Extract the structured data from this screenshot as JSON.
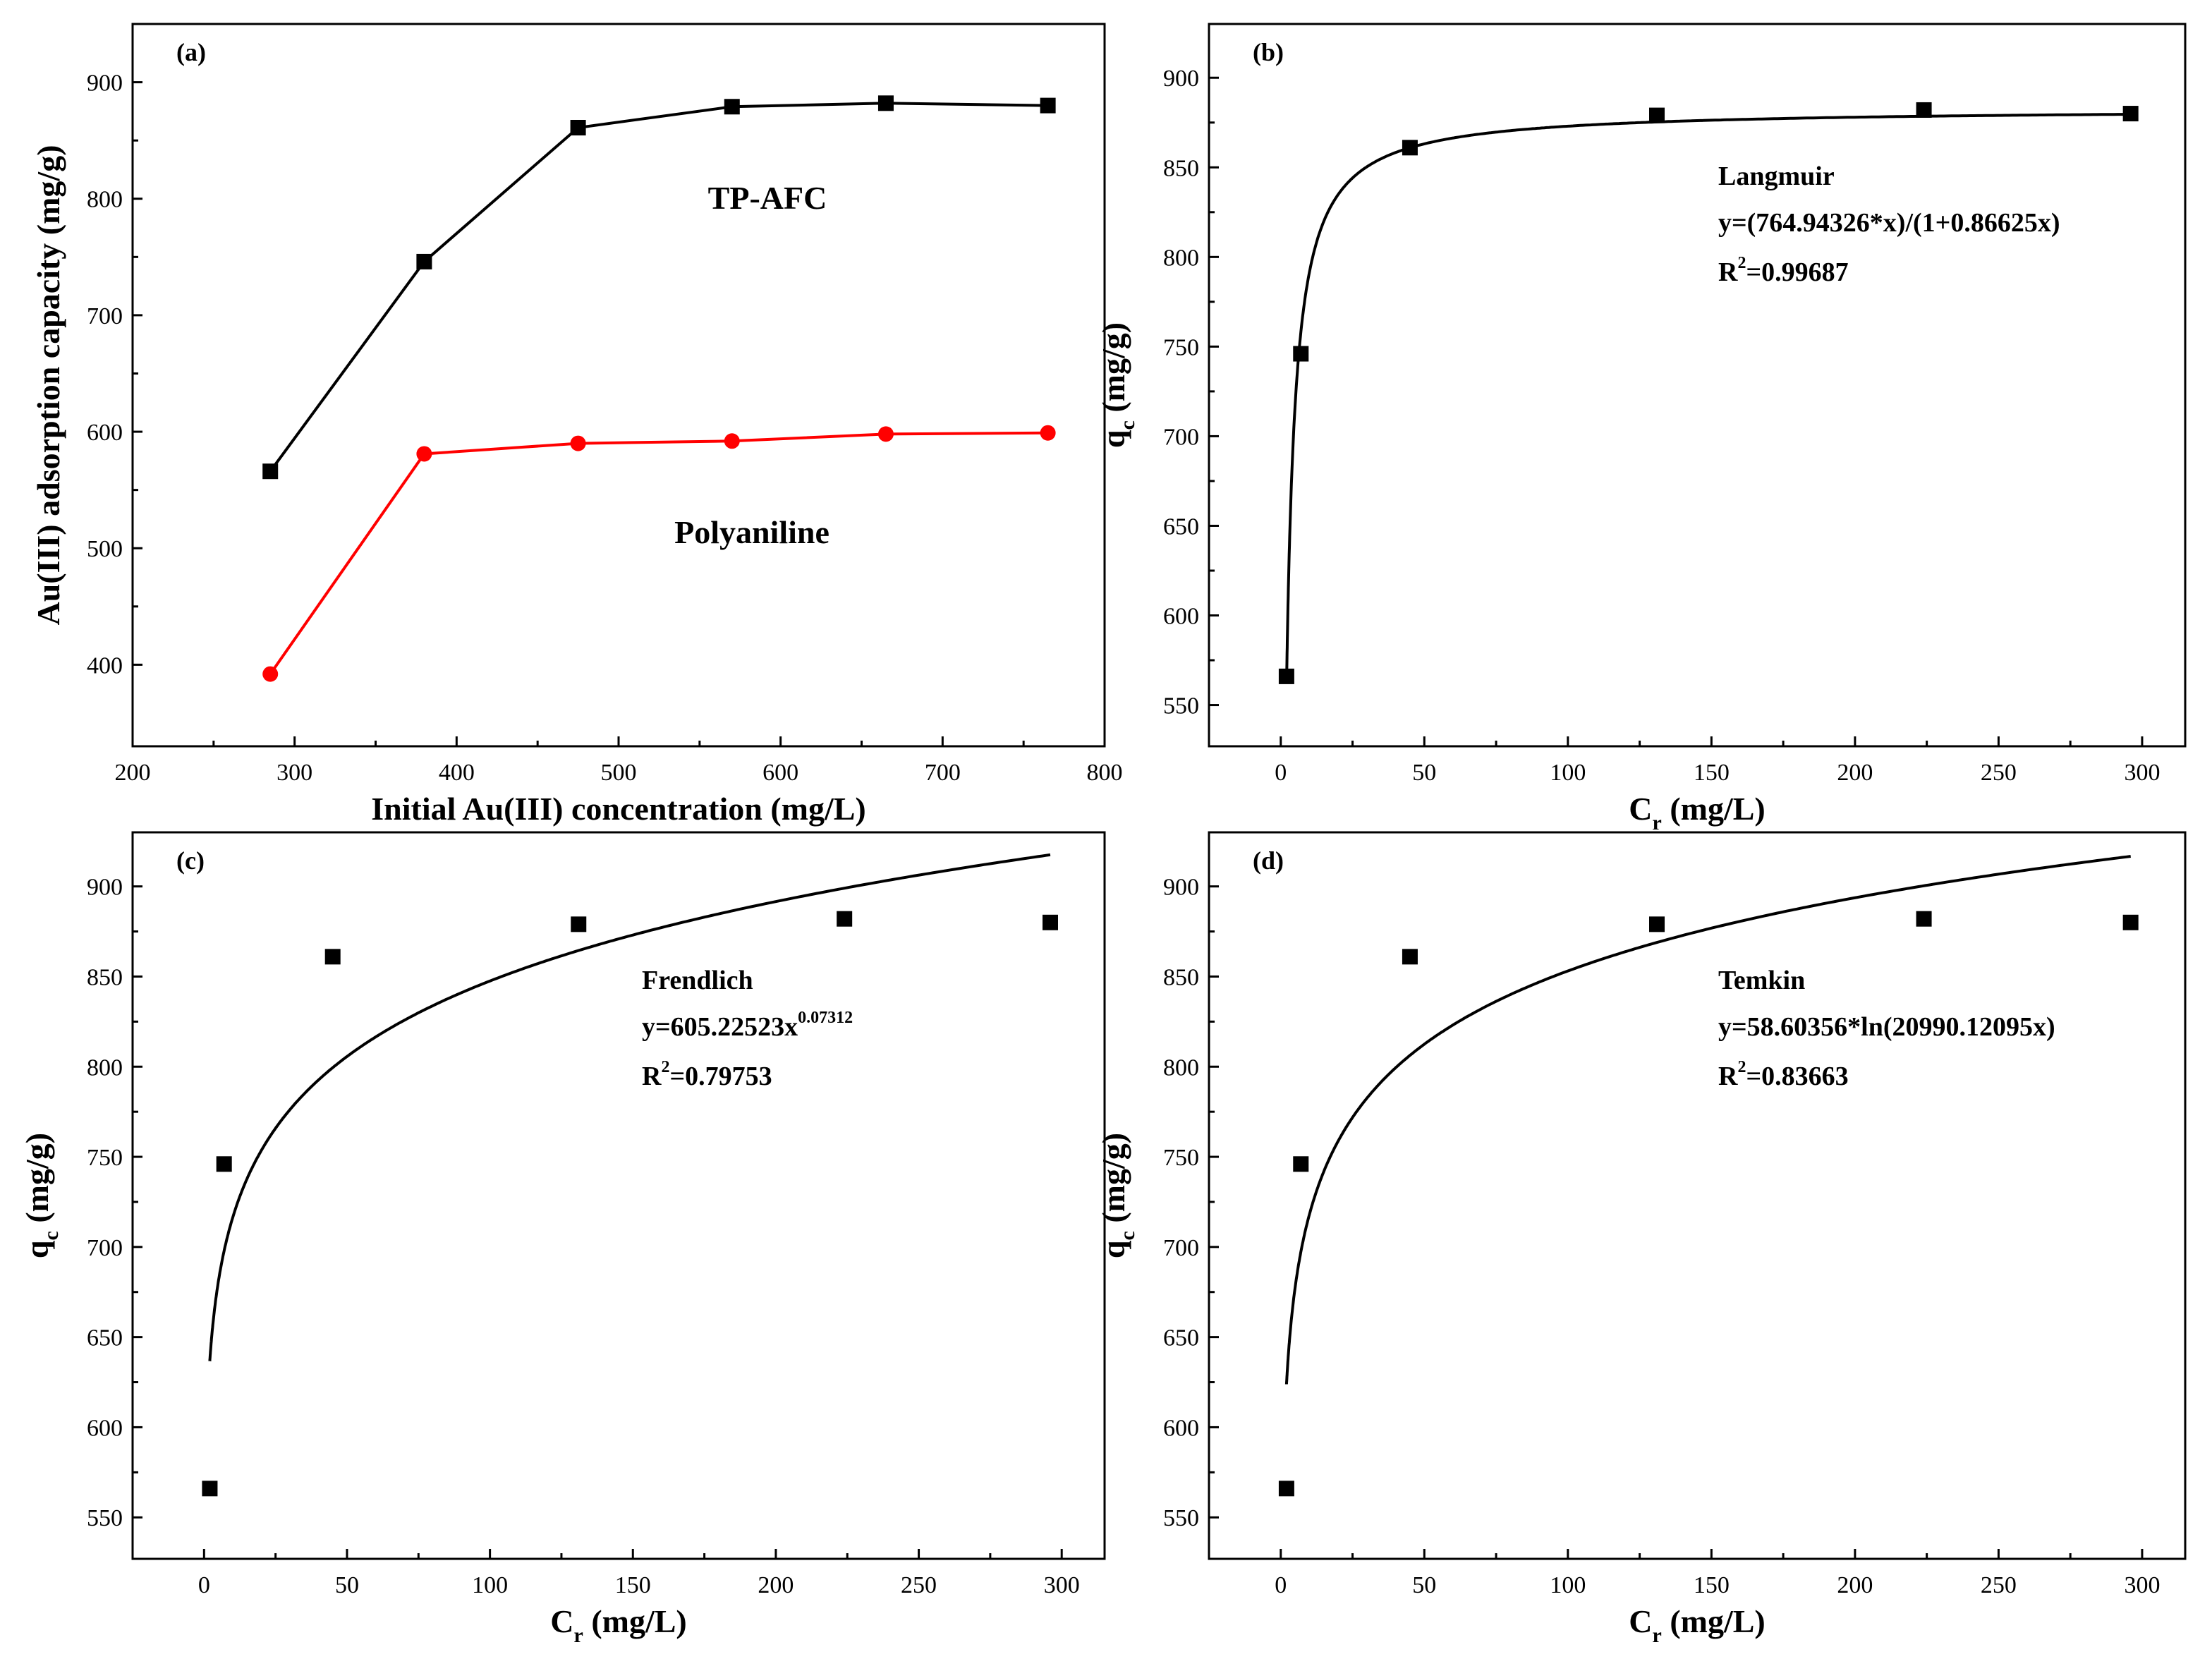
{
  "colors": {
    "series_black": "#000000",
    "series_red": "#ff0000",
    "axis": "#000000"
  },
  "chart_data": [
    {
      "id": "a",
      "type": "line",
      "panel_label": "(a)",
      "xlabel": "Initial Au(III) concentration (mg/L)",
      "ylabel": "Au(III) adsorption capacity (mg/g)",
      "xlim": [
        200,
        800
      ],
      "ylim": [
        330,
        950
      ],
      "xticks": [
        200,
        300,
        400,
        500,
        600,
        700,
        800
      ],
      "yticks": [
        400,
        500,
        600,
        700,
        800,
        900
      ],
      "series": [
        {
          "name": "TP-AFC",
          "label": "TP-AFC",
          "color": "#000000",
          "marker": "square",
          "x": [
            285,
            380,
            475,
            570,
            665,
            765
          ],
          "y": [
            566,
            746,
            861,
            879,
            882,
            880
          ]
        },
        {
          "name": "Polyaniline",
          "label": "Polyaniline",
          "color": "#ff0000",
          "marker": "circle",
          "x": [
            285,
            380,
            475,
            570,
            665,
            765
          ],
          "y": [
            392,
            581,
            590,
            592,
            598,
            599
          ]
        }
      ]
    },
    {
      "id": "b",
      "type": "scatter",
      "panel_label": "(b)",
      "xlabel": "C",
      "xlabel_sub": "r",
      "xlabel_units": " (mg/L)",
      "ylabel": "q",
      "ylabel_sub": "c",
      "ylabel_units": " (mg/g)",
      "xlim": [
        -25,
        315
      ],
      "ylim": [
        527,
        930
      ],
      "xticks": [
        0,
        50,
        100,
        150,
        200,
        250,
        300
      ],
      "yticks": [
        550,
        600,
        650,
        700,
        750,
        800,
        850,
        900
      ],
      "points": {
        "x": [
          2,
          7,
          45,
          131,
          224,
          296
        ],
        "y": [
          566,
          746,
          861,
          879,
          882,
          880
        ]
      },
      "fit": {
        "model": "Langmuir",
        "equation": "y=(764.94326*x)/(1+0.86625x)",
        "k1": 764.94326,
        "k2": 0.86625,
        "x_range": [
          2.05,
          296
        ]
      },
      "annotation": {
        "name": "Langmuir",
        "equation": "y=(764.94326*x)/(1+0.86625x)",
        "r2_value": "=0.99687"
      }
    },
    {
      "id": "c",
      "type": "scatter",
      "panel_label": "(c)",
      "xlabel": "C",
      "xlabel_sub": "r",
      "xlabel_units": " (mg/L)",
      "ylabel": "q",
      "ylabel_sub": "c",
      "ylabel_units": " (mg/g)",
      "xlim": [
        -25,
        315
      ],
      "ylim": [
        527,
        930
      ],
      "xticks": [
        0,
        50,
        100,
        150,
        200,
        250,
        300
      ],
      "yticks": [
        550,
        600,
        650,
        700,
        750,
        800,
        850,
        900
      ],
      "points": {
        "x": [
          2,
          7,
          45,
          131,
          224,
          296
        ],
        "y": [
          566,
          746,
          861,
          879,
          882,
          880
        ]
      },
      "fit": {
        "model": "Frendlich",
        "equation": "y=605.22523x^0.07312",
        "k1": 605.22523,
        "k2": 0.07312,
        "x_range": [
          2,
          296
        ]
      },
      "annotation": {
        "name": "Frendlich",
        "equation_base": "y=605.22523x",
        "equation_exp": "0.07312",
        "r2_value": "=0.79753"
      }
    },
    {
      "id": "d",
      "type": "scatter",
      "panel_label": "(d)",
      "xlabel": "C",
      "xlabel_sub": "r",
      "xlabel_units": " (mg/L)",
      "ylabel": "q",
      "ylabel_sub": "c",
      "ylabel_units": " (mg/g)",
      "xlim": [
        -25,
        315
      ],
      "ylim": [
        527,
        930
      ],
      "xticks": [
        0,
        50,
        100,
        150,
        200,
        250,
        300
      ],
      "yticks": [
        550,
        600,
        650,
        700,
        750,
        800,
        850,
        900
      ],
      "points": {
        "x": [
          2,
          7,
          45,
          131,
          224,
          296
        ],
        "y": [
          566,
          746,
          861,
          879,
          882,
          880
        ]
      },
      "fit": {
        "model": "Temkin",
        "equation": "y=58.60356*ln(20990.12095x)",
        "k1": 58.60356,
        "k2": 20990.12095,
        "x_range": [
          2,
          296
        ]
      },
      "annotation": {
        "name": "Temkin",
        "equation": "y=58.60356*ln(20990.12095x)",
        "r2_value": "=0.83663"
      }
    }
  ]
}
